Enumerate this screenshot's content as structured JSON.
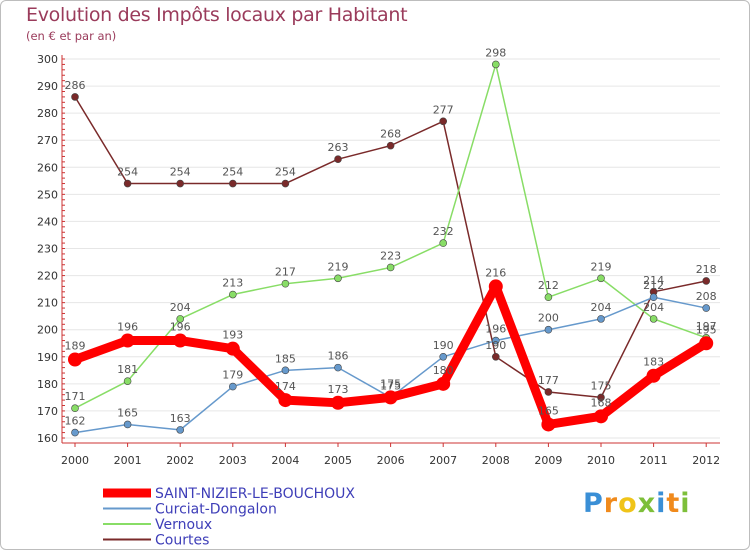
{
  "chart_data": {
    "type": "line",
    "title": "Evolution des Impôts locaux par Habitant",
    "subtitle": "(en € et par an)",
    "xlabel": "",
    "ylabel": "",
    "categories": [
      "2000",
      "2001",
      "2002",
      "2003",
      "2004",
      "2005",
      "2006",
      "2007",
      "2008",
      "2009",
      "2010",
      "2011",
      "2012"
    ],
    "ylim": [
      160,
      300
    ],
    "yticks": [
      160,
      170,
      180,
      190,
      200,
      210,
      220,
      230,
      240,
      250,
      260,
      270,
      280,
      290,
      300
    ],
    "grid": "horizontal",
    "series": [
      {
        "name": "SAINT-NIZIER-LE-BOUCHOUX",
        "color": "#ff0000",
        "values": [
          189,
          196,
          196,
          193,
          174,
          173,
          175,
          180,
          216,
          165,
          168,
          183,
          195
        ]
      },
      {
        "name": "Curciat-Dongalon",
        "color": "#6699cc",
        "values": [
          162,
          165,
          163,
          179,
          185,
          186,
          175,
          190,
          196,
          200,
          204,
          212,
          208
        ]
      },
      {
        "name": "Vernoux",
        "color": "#88dd66",
        "values": [
          171,
          181,
          204,
          213,
          217,
          219,
          223,
          232,
          298,
          212,
          219,
          204,
          197
        ]
      },
      {
        "name": "Courtes",
        "color": "#7a2a2a",
        "values": [
          286,
          254,
          254,
          254,
          254,
          263,
          268,
          277,
          190,
          177,
          175,
          214,
          218
        ]
      }
    ]
  },
  "logo": {
    "text": "Proxiti",
    "letters": [
      "P",
      "r",
      "o",
      "x",
      "i",
      "t",
      "i"
    ]
  }
}
